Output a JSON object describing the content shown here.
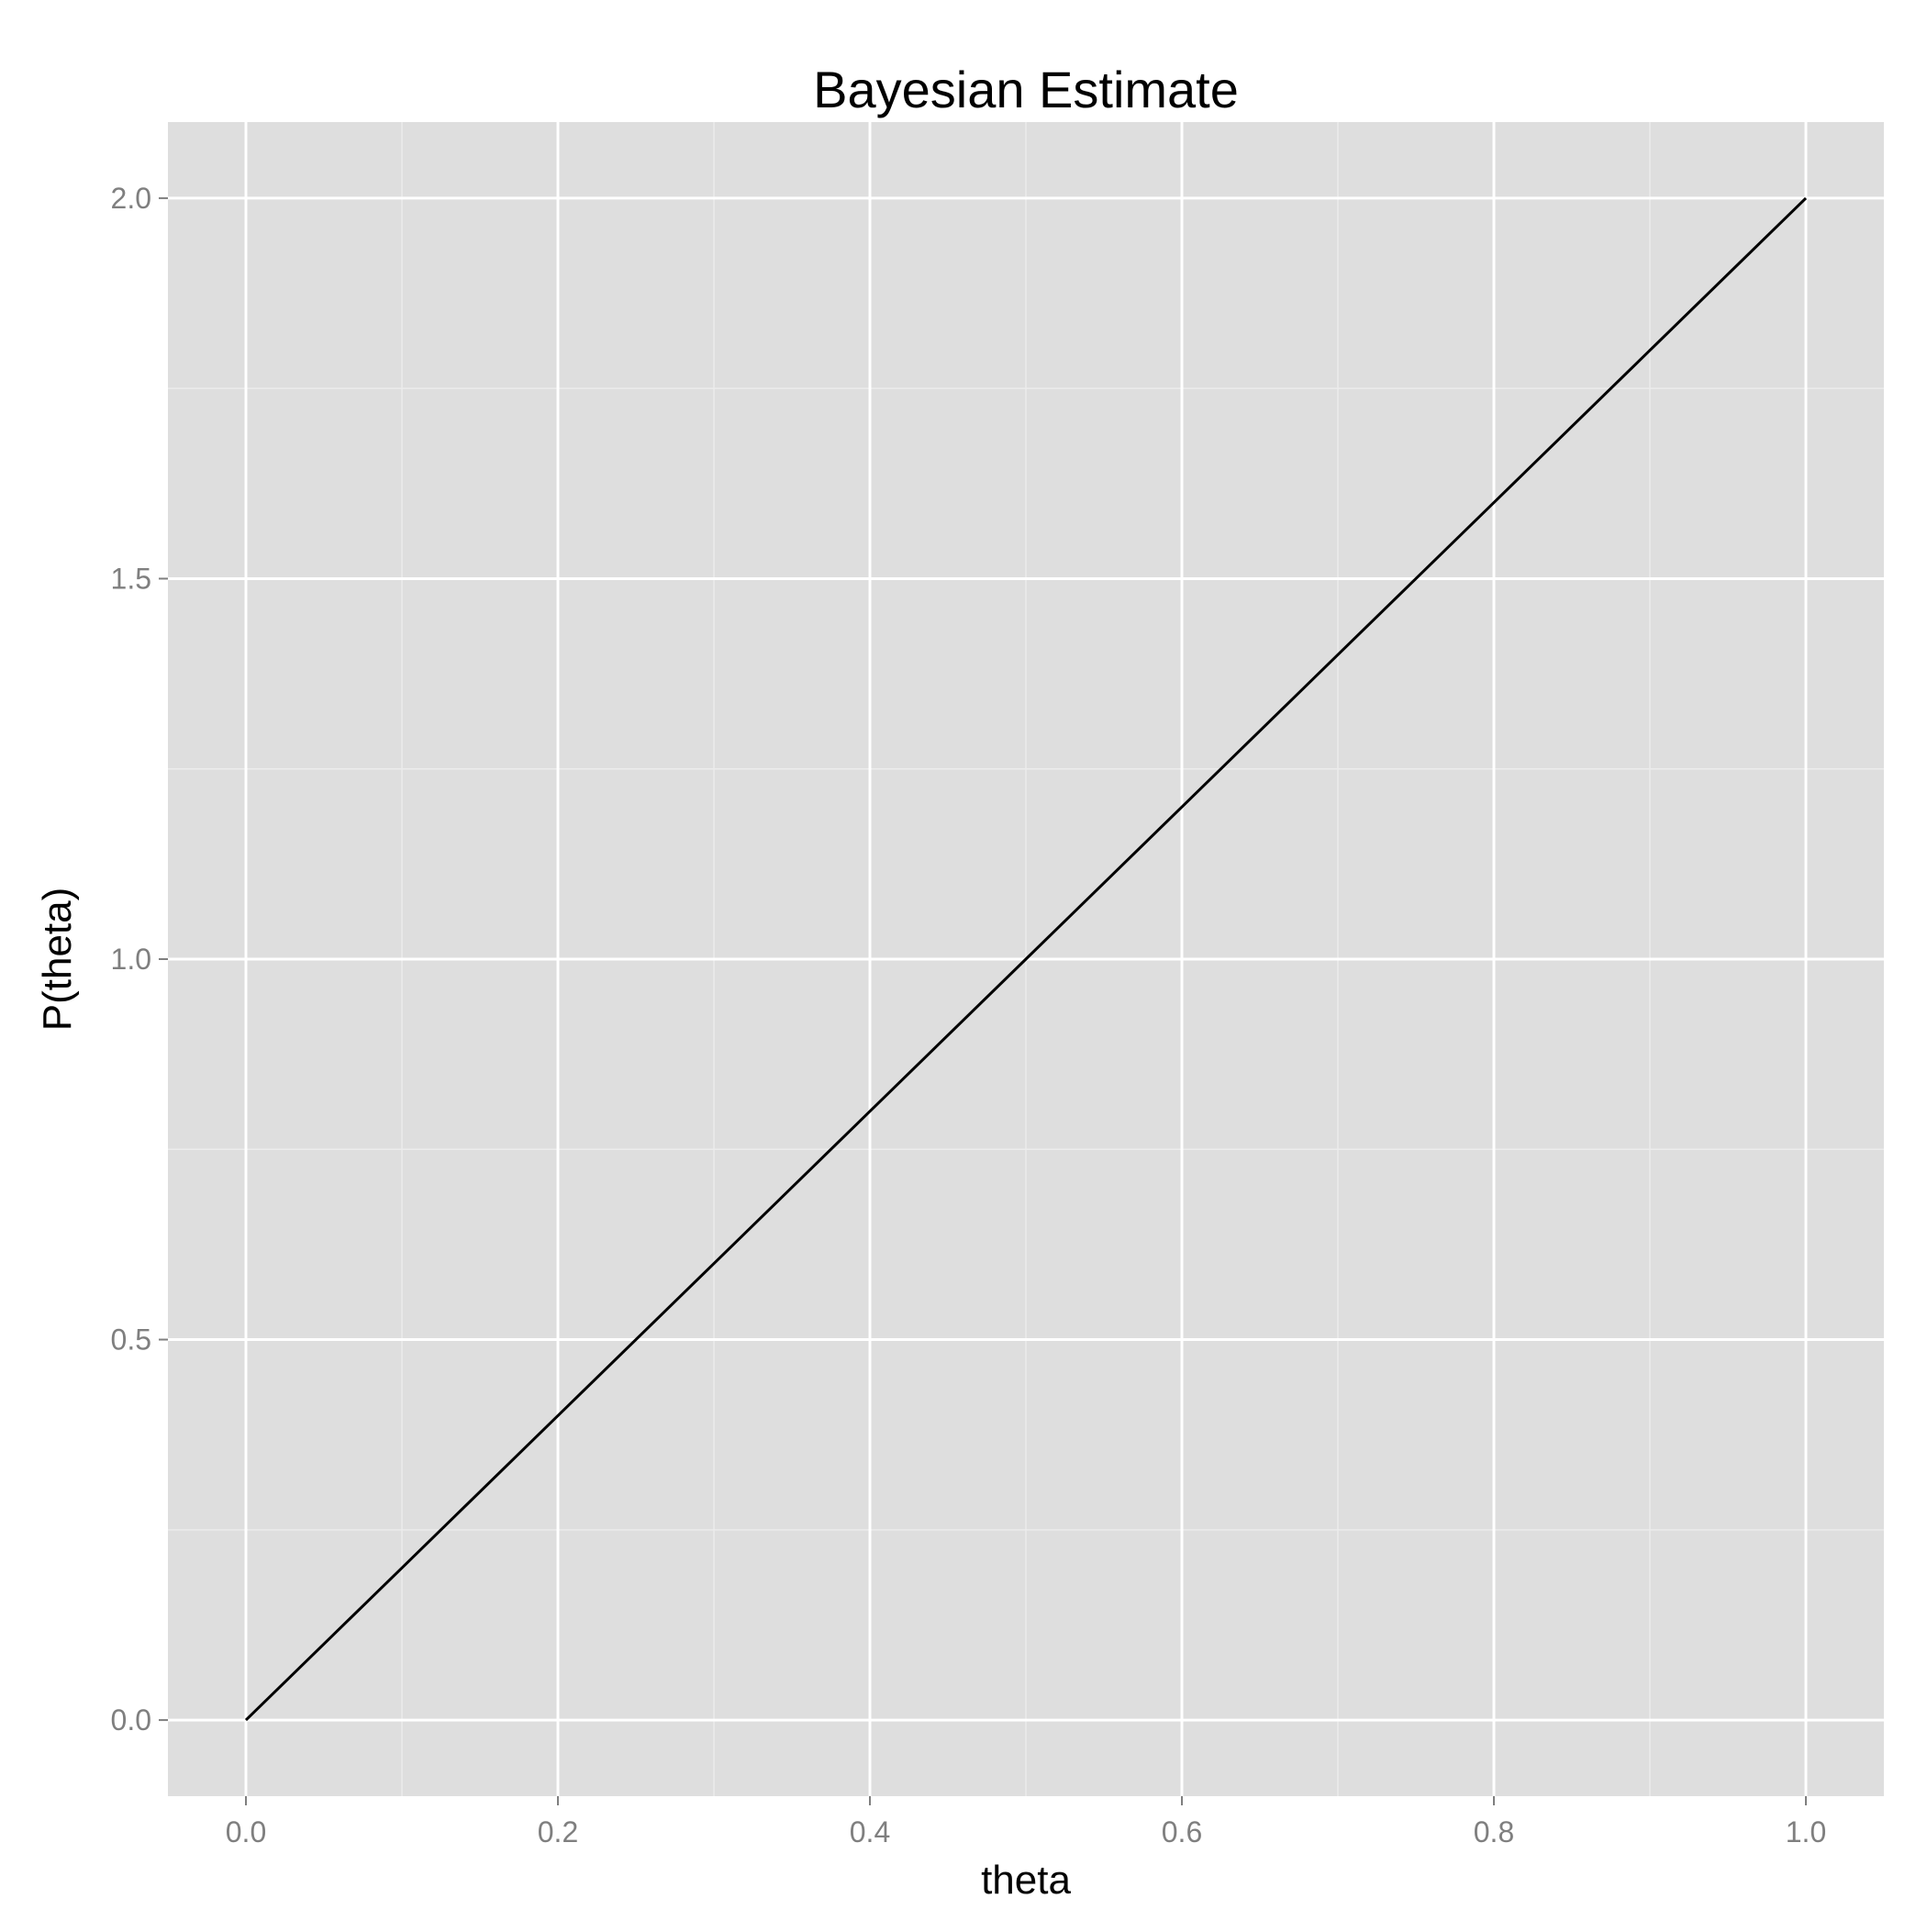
{
  "chart_data": {
    "type": "line",
    "title": "Bayesian Estimate",
    "xlabel": "theta",
    "ylabel": "P(theta)",
    "xlim": [
      -0.05,
      1.05
    ],
    "ylim": [
      -0.1,
      2.1
    ],
    "x_ticks": [
      0.0,
      0.2,
      0.4,
      0.6,
      0.8,
      1.0
    ],
    "x_tick_labels": [
      "0.0",
      "0.2",
      "0.4",
      "0.6",
      "0.8",
      "1.0"
    ],
    "y_ticks": [
      0.0,
      0.5,
      1.0,
      1.5,
      2.0
    ],
    "y_tick_labels": [
      "0.0",
      "0.5",
      "1.0",
      "1.5",
      "2.0"
    ],
    "x_minor_ticks": [
      0.1,
      0.3,
      0.5,
      0.7,
      0.9
    ],
    "y_minor_ticks": [
      0.25,
      0.75,
      1.25,
      1.75
    ],
    "grid": true,
    "legend": "none",
    "series": [
      {
        "x": [
          0.0,
          0.1,
          0.2,
          0.3,
          0.4,
          0.5,
          0.6,
          0.7,
          0.8,
          0.9,
          1.0
        ],
        "y": [
          0.0,
          0.2,
          0.4,
          0.6,
          0.8,
          1.0,
          1.2,
          1.4,
          1.6,
          1.8,
          2.0
        ]
      }
    ],
    "colors": {
      "panel_background": "#dedede",
      "major_grid": "#ffffff",
      "minor_grid": "#ececec",
      "line": "#000000",
      "tick_label": "#7f7f7f"
    }
  }
}
